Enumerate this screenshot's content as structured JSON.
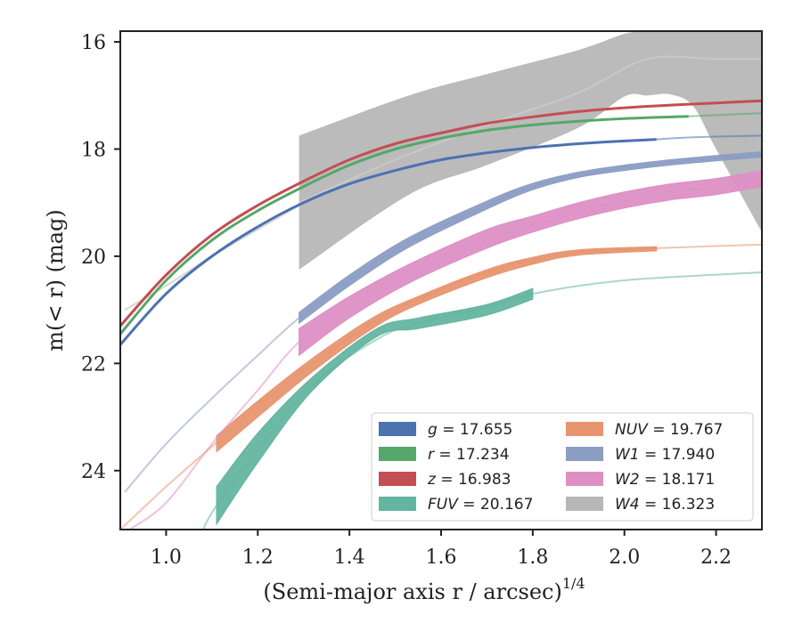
{
  "chart_data": {
    "type": "line",
    "xlabel": "(Semi-major axis r / arcsec)",
    "xlabel_sup": "1/4",
    "ylabel": "m(< r) (mag)",
    "xlim": [
      0.9,
      2.3
    ],
    "ylim": [
      25.1,
      15.8
    ],
    "y_inverted": true,
    "x_ticks": [
      1.0,
      1.2,
      1.4,
      1.6,
      1.8,
      2.0,
      2.2
    ],
    "x_tick_labels": [
      "1.0",
      "1.2",
      "1.4",
      "1.6",
      "1.8",
      "2.0",
      "2.2"
    ],
    "y_ticks": [
      16,
      18,
      20,
      22,
      24
    ],
    "y_tick_labels": [
      "16",
      "18",
      "20",
      "22",
      "24"
    ],
    "grid": false,
    "legend_position": "lower-right",
    "series": [
      {
        "name": "g = 17.655",
        "italic_label": "g",
        "value_label": "= 17.655",
        "color": "#4c72b0",
        "x": [
          0.9,
          1.0,
          1.1,
          1.2,
          1.3,
          1.4,
          1.5,
          1.6,
          1.7,
          1.8,
          1.9,
          2.0,
          2.07,
          2.15,
          2.3
        ],
        "y": [
          21.65,
          20.7,
          20.0,
          19.45,
          19.0,
          18.65,
          18.4,
          18.2,
          18.07,
          17.97,
          17.9,
          17.85,
          17.82,
          17.78,
          17.75
        ],
        "strong_from": 0.9,
        "strong_to": 2.07
      },
      {
        "name": "r = 17.234",
        "italic_label": "r",
        "value_label": "= 17.234",
        "color": "#55a868",
        "x": [
          0.9,
          1.0,
          1.1,
          1.2,
          1.3,
          1.4,
          1.5,
          1.6,
          1.7,
          1.8,
          1.9,
          2.0,
          2.14,
          2.3
        ],
        "y": [
          21.45,
          20.45,
          19.7,
          19.15,
          18.7,
          18.3,
          18.0,
          17.8,
          17.65,
          17.55,
          17.48,
          17.43,
          17.39,
          17.33
        ],
        "strong_from": 0.9,
        "strong_to": 2.14
      },
      {
        "name": "z = 16.983",
        "italic_label": "z",
        "value_label": "= 16.983",
        "color": "#c44e52",
        "x": [
          0.9,
          1.0,
          1.1,
          1.2,
          1.3,
          1.4,
          1.5,
          1.6,
          1.7,
          1.8,
          1.9,
          2.0,
          2.1,
          2.2,
          2.3
        ],
        "y": [
          21.3,
          20.35,
          19.6,
          19.05,
          18.6,
          18.2,
          17.9,
          17.7,
          17.52,
          17.4,
          17.3,
          17.23,
          17.18,
          17.14,
          17.1
        ],
        "strong_from": 0.9,
        "strong_to": 2.3
      },
      {
        "name": "FUV = 20.167",
        "italic_label": "FUV",
        "value_label": "= 20.167",
        "color": "#64b5a0",
        "x": [
          1.08,
          1.11,
          1.2,
          1.32,
          1.46,
          1.55,
          1.7,
          1.8,
          2.0,
          2.3
        ],
        "y": [
          25.1,
          24.65,
          23.6,
          22.4,
          21.55,
          21.25,
          20.95,
          20.7,
          20.45,
          20.3
        ],
        "band_x": [
          1.11,
          1.2,
          1.32,
          1.46,
          1.55,
          1.7,
          1.8
        ],
        "band_lo": [
          24.3,
          23.3,
          22.25,
          21.35,
          21.15,
          20.9,
          20.6
        ],
        "band_hi": [
          25.0,
          23.85,
          22.5,
          21.5,
          21.35,
          21.1,
          20.8
        ],
        "strong_from": 1.11,
        "strong_to": 1.8
      },
      {
        "name": "NUV = 19.767",
        "italic_label": "NUV",
        "value_label": "= 19.767",
        "color": "#e8956f",
        "x": [
          0.9,
          1.0,
          1.1,
          1.2,
          1.32,
          1.45,
          1.55,
          1.7,
          1.8,
          1.9,
          2.07,
          2.3
        ],
        "y": [
          25.1,
          24.3,
          23.55,
          22.8,
          22.0,
          21.25,
          20.8,
          20.3,
          20.07,
          19.92,
          19.85,
          19.78
        ],
        "band_x": [
          1.11,
          1.2,
          1.32,
          1.45,
          1.55,
          1.7,
          1.8,
          1.9,
          2.07
        ],
        "band_lo": [
          23.35,
          22.7,
          21.9,
          21.15,
          20.75,
          20.25,
          20.02,
          19.88,
          19.82
        ],
        "band_hi": [
          23.65,
          23.0,
          22.15,
          21.35,
          20.9,
          20.4,
          20.15,
          19.98,
          19.9
        ],
        "strong_from": 1.11,
        "strong_to": 2.07
      },
      {
        "name": "W1 = 17.940",
        "italic_label": "W1",
        "value_label": "= 17.940",
        "color": "#8c9dc4",
        "x": [
          0.91,
          1.0,
          1.1,
          1.2,
          1.29,
          1.4,
          1.53,
          1.7,
          1.8,
          1.9,
          2.0,
          2.1,
          2.2,
          2.3
        ],
        "y": [
          24.4,
          23.5,
          22.65,
          21.85,
          21.15,
          20.45,
          19.75,
          19.05,
          18.7,
          18.48,
          18.35,
          18.25,
          18.17,
          18.1
        ],
        "band_x": [
          1.29,
          1.4,
          1.53,
          1.7,
          1.8,
          1.9,
          2.0,
          2.1,
          2.2,
          2.3
        ],
        "band_lo": [
          21.05,
          20.35,
          19.65,
          18.97,
          18.64,
          18.43,
          18.3,
          18.2,
          18.12,
          18.05
        ],
        "band_hi": [
          21.25,
          20.55,
          19.83,
          19.12,
          18.76,
          18.53,
          18.4,
          18.3,
          18.22,
          18.15
        ],
        "strong_from": 1.29,
        "strong_to": 2.3
      },
      {
        "name": "W2 = 18.171",
        "italic_label": "W2",
        "value_label": "= 18.171",
        "color": "#dd8fc4",
        "x": [
          0.92,
          1.0,
          1.1,
          1.2,
          1.29,
          1.4,
          1.53,
          1.7,
          1.8,
          1.9,
          2.0,
          2.1,
          2.2,
          2.3
        ],
        "y": [
          25.1,
          24.6,
          23.5,
          22.5,
          21.6,
          20.95,
          20.35,
          19.7,
          19.42,
          19.17,
          18.95,
          18.8,
          18.7,
          18.55
        ],
        "band_x": [
          1.29,
          1.4,
          1.53,
          1.7,
          1.8,
          1.9,
          2.0,
          2.1,
          2.2,
          2.3
        ],
        "band_lo": [
          21.35,
          20.75,
          20.15,
          19.5,
          19.25,
          19.0,
          18.8,
          18.65,
          18.55,
          18.4
        ],
        "band_hi": [
          21.85,
          21.15,
          20.5,
          19.85,
          19.55,
          19.3,
          19.1,
          18.95,
          18.85,
          18.7
        ],
        "strong_from": 1.29,
        "strong_to": 2.3
      },
      {
        "name": "W4 = 16.323",
        "italic_label": "W4",
        "value_label": "= 16.323",
        "color": "#b7b7b7",
        "x": [
          0.91,
          1.0,
          1.1,
          1.2,
          1.29
        ],
        "y": [
          21.0,
          20.55,
          20.0,
          19.5,
          19.05
        ],
        "band_x": [
          1.29,
          1.53,
          1.7,
          1.9,
          2.0,
          2.05,
          2.1,
          2.15,
          2.2,
          2.3
        ],
        "band_lo": [
          17.75,
          17.0,
          16.6,
          16.15,
          15.85,
          15.8,
          15.8,
          15.8,
          15.8,
          15.8
        ],
        "band_hi": [
          20.25,
          18.85,
          18.3,
          17.6,
          17.02,
          17.0,
          16.98,
          17.2,
          18.0,
          19.55
        ],
        "center_x": [
          1.29,
          1.5,
          1.7,
          1.9,
          2.05,
          2.2,
          2.3
        ],
        "center_y": [
          19.0,
          18.2,
          17.55,
          16.95,
          16.32,
          16.32,
          16.32
        ],
        "strong_from": 1.29,
        "strong_to": 2.3
      }
    ]
  }
}
